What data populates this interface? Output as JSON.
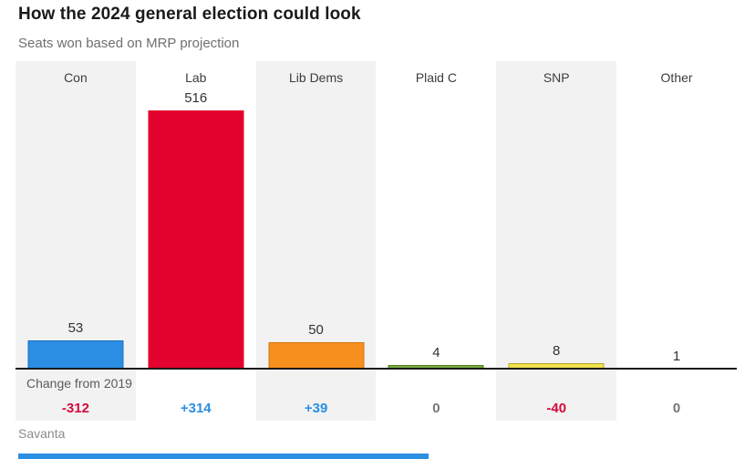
{
  "title": "How the 2024 general election could look",
  "subtitle": "Seats won based on MRP projection",
  "source": "Savanta",
  "change_row_label": "Change from 2019",
  "colors": {
    "column_shade": "#f2f2f2",
    "axis": "#1a1a1a",
    "title_text": "#1a1a1a",
    "subtitle_text": "#6f6f6f",
    "negative_change": "#d40a3c",
    "positive_change": "#2b8fe2",
    "zero_change": "#757575",
    "accent_bar": "#2b8fe2"
  },
  "chart_data": {
    "type": "bar",
    "title": "How the 2024 general election could look",
    "subtitle": "Seats won based on MRP projection",
    "categories": [
      "Con",
      "Lab",
      "Lib Dems",
      "Plaid C",
      "SNP",
      "Other"
    ],
    "values": [
      53,
      516,
      50,
      4,
      8,
      1
    ],
    "changes_from_2019": [
      -312,
      314,
      39,
      0,
      -40,
      0
    ],
    "bar_colors": [
      "#2b8ee3",
      "#e4032e",
      "#f78f1e",
      "#7cab40",
      "#f2e24e",
      "none"
    ],
    "xlabel": "",
    "ylabel": "Seats won",
    "ylim": [
      0,
      516
    ],
    "grid": false,
    "legend": "none",
    "source": "Savanta"
  },
  "columns": [
    {
      "label": "Con",
      "value": "53",
      "seats": 53,
      "change": "-312",
      "change_color": "#d40a3c",
      "bar_color": "#2b8ee3",
      "bar_border": "#1a72c4",
      "shaded": true
    },
    {
      "label": "Lab",
      "value": "516",
      "seats": 516,
      "change": "+314",
      "change_color": "#2b8fe2",
      "bar_color": "#e4032e",
      "bar_border": "#e4032e",
      "shaded": false
    },
    {
      "label": "Lib Dems",
      "value": "50",
      "seats": 50,
      "change": "+39",
      "change_color": "#2b8fe2",
      "bar_color": "#f78f1e",
      "bar_border": "#d2770f",
      "shaded": true
    },
    {
      "label": "Plaid C",
      "value": "4",
      "seats": 4,
      "change": "0",
      "change_color": "#757575",
      "bar_color": "#7cab40",
      "bar_border": "#4f7d1d",
      "shaded": false
    },
    {
      "label": "SNP",
      "value": "8",
      "seats": 8,
      "change": "-40",
      "change_color": "#d40a3c",
      "bar_color": "#f2e24e",
      "bar_border": "#b5a62d",
      "shaded": true
    },
    {
      "label": "Other",
      "value": "1",
      "seats": 1,
      "change": "0",
      "change_color": "#757575",
      "bar_color": "#999999",
      "bar_border": "#999999",
      "shaded": false
    }
  ]
}
